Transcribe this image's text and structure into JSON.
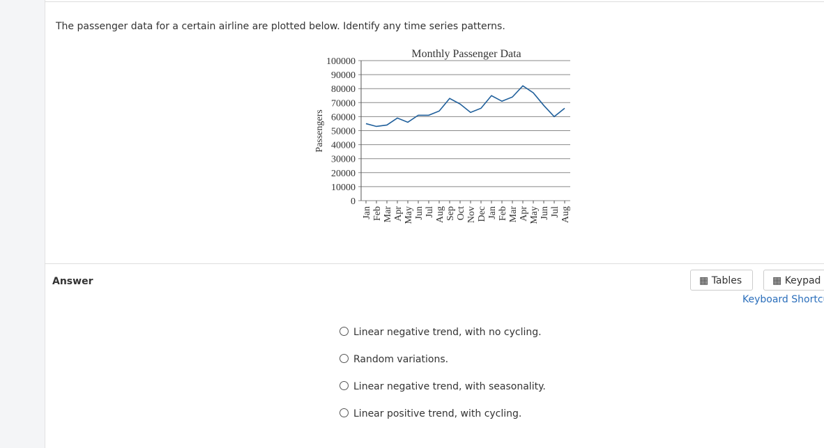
{
  "question": "The passenger data for a certain airline are plotted below. Identify any time series patterns.",
  "chart_data": {
    "type": "line",
    "title": "Monthly Passenger Data",
    "y_label": "Passengers",
    "categories": [
      "Jan",
      "Feb",
      "Mar",
      "Apr",
      "May",
      "Jun",
      "Jul",
      "Aug",
      "Sep",
      "Oct",
      "Nov",
      "Dec",
      "Jan",
      "Feb",
      "Mar",
      "Apr",
      "May",
      "Jun",
      "Jul",
      "Aug"
    ],
    "series": [
      {
        "name": "Passengers",
        "color": "#1f5f9b",
        "values": [
          55000,
          53000,
          54000,
          59000,
          56000,
          61000,
          61000,
          64000,
          73000,
          69000,
          63000,
          66000,
          75000,
          71000,
          74000,
          82000,
          77000,
          68000,
          60000,
          66000
        ]
      }
    ],
    "ylim": [
      0,
      100000
    ],
    "yticks": [
      0,
      10000,
      20000,
      30000,
      40000,
      50000,
      60000,
      70000,
      80000,
      90000,
      100000
    ],
    "grid": true
  },
  "answer_label": "Answer",
  "buttons": [
    "Tables",
    "Keypad"
  ],
  "link": "Keyboard Shortcuts",
  "options": [
    "Linear negative trend, with no cycling.",
    "Random variations.",
    "Linear negative trend, with seasonality.",
    "Linear positive trend, with cycling."
  ]
}
